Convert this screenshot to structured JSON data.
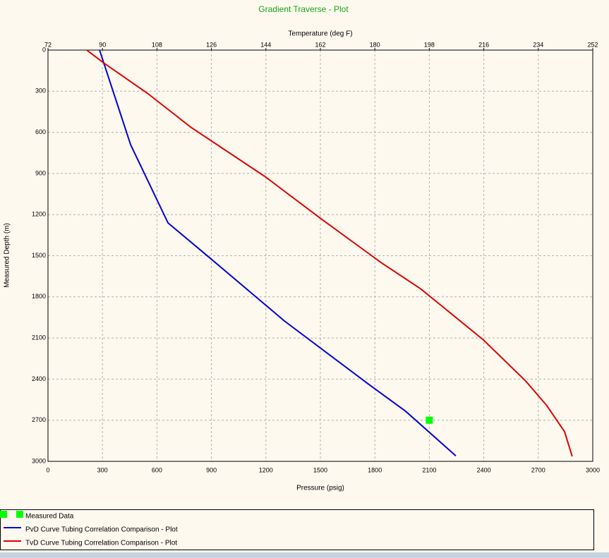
{
  "chart_data": {
    "type": "line",
    "title": "Gradient Traverse - Plot",
    "x_label": "Pressure  (psig)",
    "x2_label": "Temperature  (deg F)",
    "y_label": "Measured Depth  (m)",
    "xlim": [
      0,
      3000
    ],
    "xticks": [
      0,
      300,
      600,
      900,
      1200,
      1500,
      1800,
      2100,
      2400,
      2700,
      3000
    ],
    "x2lim": [
      72,
      252
    ],
    "x2ticks": [
      72,
      90,
      108,
      126,
      144,
      162,
      180,
      198,
      216,
      234,
      252
    ],
    "ylim": [
      0,
      3000
    ],
    "y_inverted": true,
    "yticks": [
      0,
      300,
      600,
      900,
      1200,
      1500,
      1800,
      2100,
      2400,
      2700,
      3000
    ],
    "grid": true,
    "legend": "bottom",
    "series": [
      {
        "name": "Measured Data",
        "color": "#00ff00",
        "marker": "square",
        "x": [
          2100
        ],
        "values": [
          2700
        ]
      },
      {
        "name": "PvD Curve Tubing Correlation Comparison - Plot",
        "color": "#0000dd",
        "x": [
          284,
          455,
          661,
          902,
          1302,
          1757,
          1970,
          2246
        ],
        "values": [
          0,
          690,
          1261,
          1528,
          1976,
          2429,
          2635,
          2960
        ]
      },
      {
        "name": "TvD Curve Tubing Correlation Comparison - Plot",
        "color": "#dd0000",
        "axis": "x2",
        "x": [
          84.8,
          90.7,
          105.1,
          119.1,
          143.6,
          162.2,
          182.0,
          195.3,
          215.9,
          229.8,
          236.8,
          242.7,
          245.2
        ],
        "values": [
          0,
          98,
          319,
          561,
          921,
          1230,
          1549,
          1744,
          2115,
          2413,
          2593,
          2784,
          2964
        ]
      }
    ]
  }
}
